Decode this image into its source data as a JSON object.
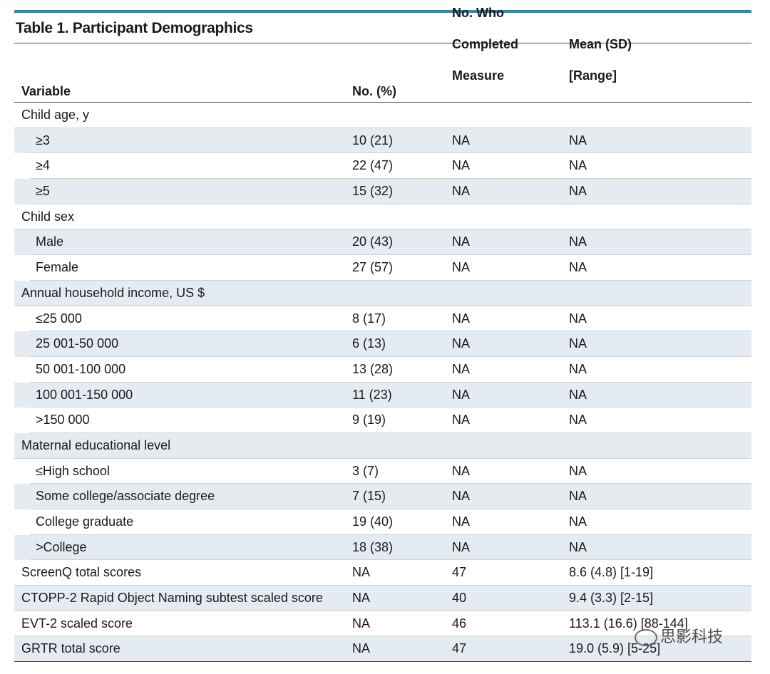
{
  "title": "Table 1. Participant Demographics",
  "headers": {
    "variable": "Variable",
    "no_pct": "No. (%)",
    "completed": [
      "No. Who",
      "Completed",
      "Measure"
    ],
    "mean": [
      "Mean (SD)",
      "[Range]"
    ]
  },
  "rows": [
    {
      "type": "group",
      "label": "Child age, y",
      "no": "",
      "completed": "",
      "mean": ""
    },
    {
      "type": "sub",
      "label": "≥3",
      "no": "10 (21)",
      "completed": "NA",
      "mean": "NA"
    },
    {
      "type": "sub",
      "label": "≥4",
      "no": "22 (47)",
      "completed": "NA",
      "mean": "NA"
    },
    {
      "type": "sub",
      "label": "≥5",
      "no": "15 (32)",
      "completed": "NA",
      "mean": "NA"
    },
    {
      "type": "group",
      "label": "Child sex",
      "no": "",
      "completed": "",
      "mean": ""
    },
    {
      "type": "sub",
      "label": "Male",
      "no": "20 (43)",
      "completed": "NA",
      "mean": "NA"
    },
    {
      "type": "sub",
      "label": "Female",
      "no": "27 (57)",
      "completed": "NA",
      "mean": "NA"
    },
    {
      "type": "group",
      "label": "Annual household income, US $",
      "no": "",
      "completed": "",
      "mean": ""
    },
    {
      "type": "sub",
      "label": "≤25 000",
      "no": "8 (17)",
      "completed": "NA",
      "mean": "NA"
    },
    {
      "type": "sub",
      "label": "25 001-50 000",
      "no": "6 (13)",
      "completed": "NA",
      "mean": "NA"
    },
    {
      "type": "sub",
      "label": "50 001-100 000",
      "no": "13 (28)",
      "completed": "NA",
      "mean": "NA"
    },
    {
      "type": "sub",
      "label": "100 001-150 000",
      "no": "11 (23)",
      "completed": "NA",
      "mean": "NA"
    },
    {
      "type": "sub",
      "label": ">150 000",
      "no": "9 (19)",
      "completed": "NA",
      "mean": "NA"
    },
    {
      "type": "group",
      "label": "Maternal educational level",
      "no": "",
      "completed": "",
      "mean": ""
    },
    {
      "type": "sub",
      "label": "≤High school",
      "no": "3 (7)",
      "completed": "NA",
      "mean": "NA"
    },
    {
      "type": "sub",
      "label": "Some college/associate degree",
      "no": "7 (15)",
      "completed": "NA",
      "mean": "NA"
    },
    {
      "type": "sub",
      "label": "College graduate",
      "no": "19 (40)",
      "completed": "NA",
      "mean": "NA"
    },
    {
      "type": "sub",
      "label": ">College",
      "no": "18 (38)",
      "completed": "NA",
      "mean": "NA"
    },
    {
      "type": "group",
      "label": "ScreenQ total scores",
      "no": "NA",
      "completed": "47",
      "mean": "8.6 (4.8) [1-19]"
    },
    {
      "type": "group",
      "label": "CTOPP-2 Rapid Object Naming subtest scaled score",
      "no": "NA",
      "completed": "40",
      "mean": "9.4 (3.3) [2-15]"
    },
    {
      "type": "group",
      "label": "EVT-2 scaled score",
      "no": "NA",
      "completed": "46",
      "mean": "113.1 (16.6) [88-144]"
    },
    {
      "type": "group",
      "label": "GRTR total score",
      "no": "NA",
      "completed": "47",
      "mean": "19.0 (5.9) [5-25]"
    }
  ],
  "watermark": "思影科技"
}
